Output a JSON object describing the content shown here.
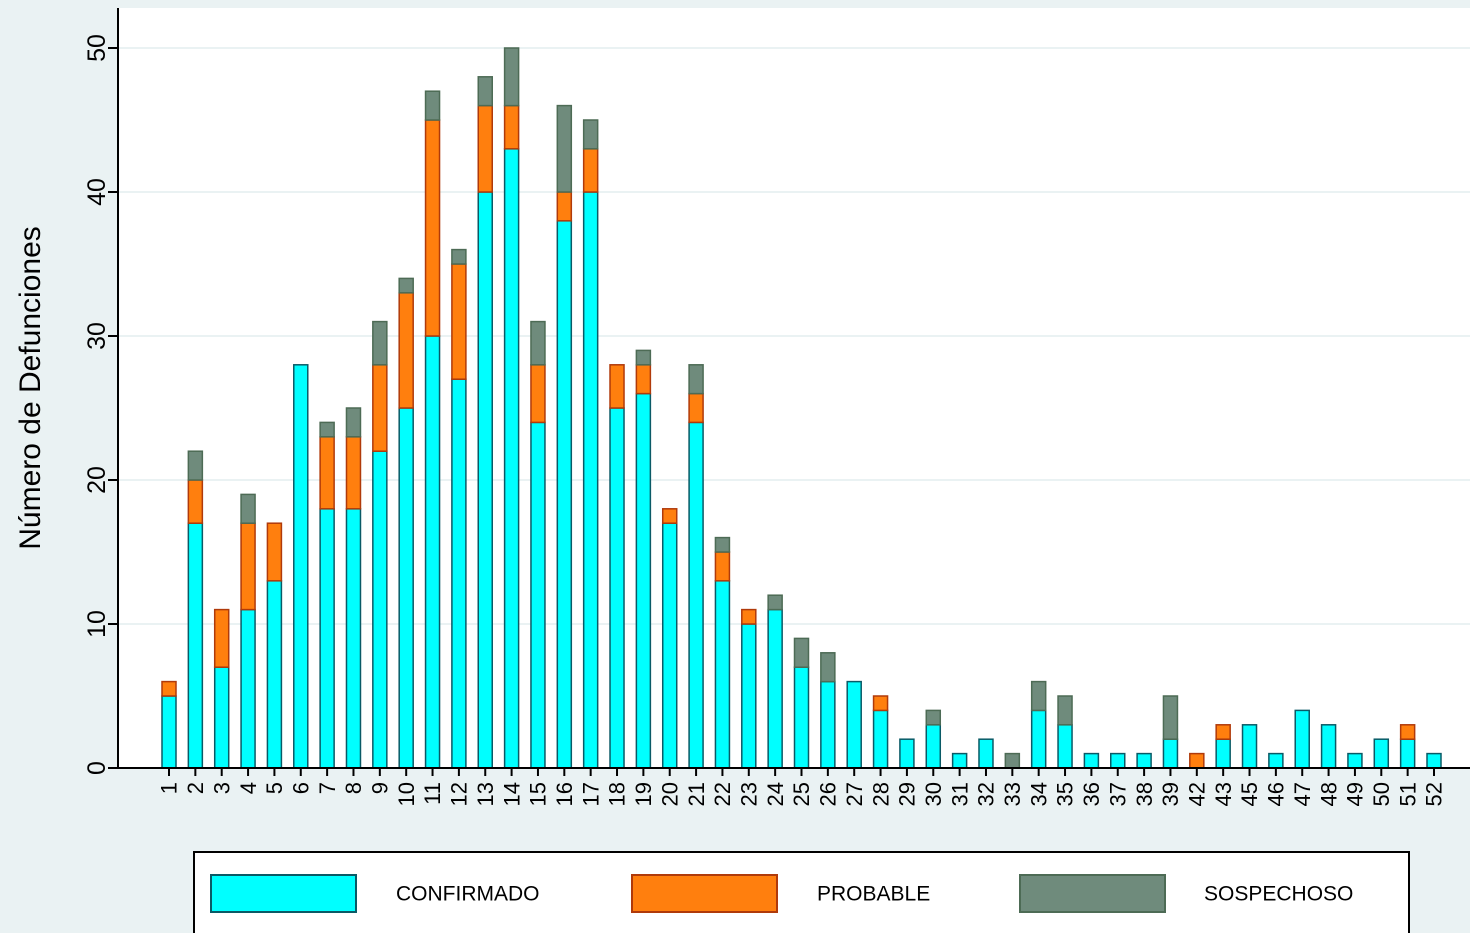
{
  "chart_data": {
    "type": "bar",
    "stacked": true,
    "title": "",
    "xlabel": "",
    "ylabel": "Número de Defunciones",
    "ylim": [
      0,
      50
    ],
    "yticks": [
      0,
      10,
      20,
      30,
      40,
      50
    ],
    "grid": true,
    "legend_position": "bottom",
    "categories": [
      "1",
      "2",
      "3",
      "4",
      "5",
      "6",
      "7",
      "8",
      "9",
      "10",
      "11",
      "12",
      "13",
      "14",
      "15",
      "16",
      "17",
      "18",
      "19",
      "20",
      "21",
      "22",
      "23",
      "24",
      "25",
      "26",
      "27",
      "28",
      "29",
      "30",
      "31",
      "32",
      "33",
      "34",
      "35",
      "36",
      "37",
      "38",
      "39",
      "42",
      "43",
      "45",
      "46",
      "47",
      "48",
      "49",
      "50",
      "51",
      "52"
    ],
    "series": [
      {
        "name": "CONFIRMADO",
        "color": "#00ffff",
        "values": [
          5,
          17,
          7,
          11,
          13,
          28,
          18,
          18,
          22,
          25,
          30,
          27,
          40,
          43,
          24,
          38,
          40,
          25,
          26,
          17,
          24,
          13,
          10,
          11,
          7,
          6,
          6,
          4,
          2,
          3,
          1,
          2,
          0,
          4,
          3,
          1,
          1,
          1,
          2,
          0,
          2,
          3,
          1,
          4,
          3,
          1,
          2,
          2,
          1
        ]
      },
      {
        "name": "PROBABLE",
        "color": "#ff7f0e",
        "values": [
          1,
          3,
          4,
          6,
          4,
          0,
          5,
          5,
          6,
          8,
          15,
          8,
          6,
          3,
          4,
          2,
          3,
          3,
          2,
          1,
          2,
          2,
          1,
          0,
          0,
          0,
          0,
          1,
          0,
          0,
          0,
          0,
          0,
          0,
          0,
          0,
          0,
          0,
          0,
          1,
          1,
          0,
          0,
          0,
          0,
          0,
          0,
          1,
          0
        ]
      },
      {
        "name": "SOSPECHOSO",
        "color": "#6f8b7c",
        "values": [
          0,
          2,
          0,
          2,
          0,
          0,
          1,
          2,
          3,
          1,
          2,
          1,
          2,
          4,
          3,
          6,
          2,
          0,
          1,
          0,
          2,
          1,
          0,
          1,
          2,
          2,
          0,
          0,
          0,
          1,
          0,
          0,
          1,
          2,
          2,
          0,
          0,
          0,
          3,
          0,
          0,
          0,
          0,
          0,
          0,
          0,
          0,
          0,
          0
        ]
      }
    ]
  }
}
